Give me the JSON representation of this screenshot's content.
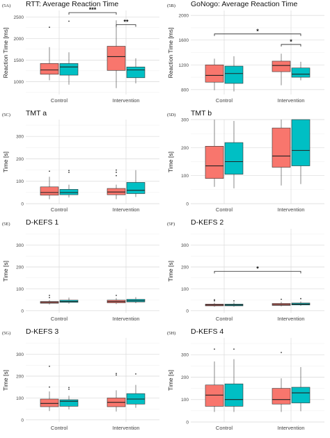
{
  "colors": {
    "control_box": "#f8766d",
    "intervention_box": "#00bfc4",
    "grid": "#d9d9d9",
    "grid_minor": "#eeeeee",
    "whisker": "#555555",
    "outlier": "#333333"
  },
  "chart_data": [
    {
      "id": "5A",
      "type": "boxplot",
      "panel_label": "(5A)",
      "title": "RTT: Average Reaction Time",
      "xlabel": "",
      "ylabel": "Reaction Time [ms]",
      "ylim": [
        700,
        2650
      ],
      "yticks": [
        1000,
        1500,
        2000,
        2500
      ],
      "categories": [
        "Control",
        "Intervention"
      ],
      "boxes": [
        {
          "group": "Control",
          "series": 0,
          "min": 1030,
          "q1": 1170,
          "median": 1270,
          "q3": 1420,
          "max": 1800,
          "outliers": [
            2260
          ]
        },
        {
          "group": "Control",
          "series": 1,
          "min": 930,
          "q1": 1150,
          "median": 1340,
          "q3": 1420,
          "max": 1680,
          "outliers": [
            2400
          ]
        },
        {
          "group": "Intervention",
          "series": 0,
          "min": 850,
          "q1": 1260,
          "median": 1580,
          "q3": 1820,
          "max": 2420,
          "outliers": []
        },
        {
          "group": "Intervention",
          "series": 1,
          "min": 960,
          "q1": 1090,
          "median": 1270,
          "q3": 1340,
          "max": 1540,
          "outliers": []
        }
      ],
      "significance": [
        {
          "label": "***",
          "from": [
            0,
            1
          ],
          "to": [
            1,
            0
          ],
          "y": 2600
        },
        {
          "label": "**",
          "from": [
            1,
            0
          ],
          "to": [
            1,
            1
          ],
          "y": 2320
        }
      ]
    },
    {
      "id": "5B",
      "type": "boxplot",
      "panel_label": "(5B)",
      "title": "GoNogo: Average Reaction Time",
      "xlabel": "",
      "ylabel": "Reaction Time [ms]",
      "ylim": [
        720,
        2080
      ],
      "yticks": [
        800,
        1200,
        1600,
        2000
      ],
      "categories": [
        "Control",
        "Intervention"
      ],
      "boxes": [
        {
          "group": "Control",
          "series": 0,
          "min": 790,
          "q1": 920,
          "median": 1030,
          "q3": 1200,
          "max": 1300,
          "outliers": []
        },
        {
          "group": "Control",
          "series": 1,
          "min": 770,
          "q1": 900,
          "median": 1060,
          "q3": 1180,
          "max": 1340,
          "outliers": []
        },
        {
          "group": "Intervention",
          "series": 0,
          "min": 870,
          "q1": 1090,
          "median": 1190,
          "q3": 1260,
          "max": 1380,
          "outliers": []
        },
        {
          "group": "Intervention",
          "series": 1,
          "min": 950,
          "q1": 1000,
          "median": 1050,
          "q3": 1150,
          "max": 1250,
          "outliers": []
        }
      ],
      "significance": [
        {
          "label": "*",
          "from": [
            0,
            0
          ],
          "to": [
            1,
            1
          ],
          "y": 1700
        },
        {
          "label": "*",
          "from": [
            1,
            0
          ],
          "to": [
            1,
            1
          ],
          "y": 1530
        }
      ]
    },
    {
      "id": "5C",
      "type": "boxplot",
      "panel_label": "(5C)",
      "title": "TMT a",
      "xlabel": "",
      "ylabel": "Time [s]",
      "ylim": [
        0,
        375
      ],
      "yticks": [
        0,
        100,
        200,
        300
      ],
      "categories": [
        "Control",
        "Intervention"
      ],
      "boxes": [
        {
          "group": "Control",
          "series": 0,
          "min": 20,
          "q1": 38,
          "median": 50,
          "q3": 75,
          "max": 120,
          "outliers": [
            145
          ]
        },
        {
          "group": "Control",
          "series": 1,
          "min": 28,
          "q1": 40,
          "median": 50,
          "q3": 64,
          "max": 85,
          "outliers": [
            140,
            148
          ]
        },
        {
          "group": "Intervention",
          "series": 0,
          "min": 20,
          "q1": 40,
          "median": 52,
          "q3": 68,
          "max": 85,
          "outliers": [
            125,
            140,
            150
          ]
        },
        {
          "group": "Intervention",
          "series": 1,
          "min": 30,
          "q1": 45,
          "median": 60,
          "q3": 95,
          "max": 150,
          "outliers": []
        }
      ],
      "significance": []
    },
    {
      "id": "5D",
      "type": "boxplot",
      "panel_label": "(5D)",
      "title": "TMT b",
      "xlabel": "",
      "ylabel": "Time [s]",
      "ylim": [
        0,
        300
      ],
      "yticks": [
        0,
        100,
        200,
        300
      ],
      "categories": [
        "Control",
        "Intervention"
      ],
      "boxes": [
        {
          "group": "Control",
          "series": 0,
          "min": 60,
          "q1": 90,
          "median": 135,
          "q3": 205,
          "max": 300,
          "outliers": []
        },
        {
          "group": "Control",
          "series": 1,
          "min": 55,
          "q1": 105,
          "median": 150,
          "q3": 218,
          "max": 295,
          "outliers": []
        },
        {
          "group": "Intervention",
          "series": 0,
          "min": 65,
          "q1": 130,
          "median": 170,
          "q3": 270,
          "max": 300,
          "outliers": []
        },
        {
          "group": "Intervention",
          "series": 1,
          "min": 70,
          "q1": 135,
          "median": 190,
          "q3": 300,
          "max": 300,
          "outliers": []
        }
      ],
      "significance": []
    },
    {
      "id": "5E",
      "type": "boxplot",
      "panel_label": "(5E)",
      "title": "D-KEFS 1",
      "xlabel": "",
      "ylabel": "Time [s]",
      "ylim": [
        -10,
        375
      ],
      "yticks": [
        0,
        100,
        200,
        300
      ],
      "categories": [
        "Control",
        "Intervention"
      ],
      "boxes": [
        {
          "group": "Control",
          "series": 0,
          "min": 28,
          "q1": 34,
          "median": 38,
          "q3": 42,
          "max": 48,
          "outliers": [
            60,
            70
          ]
        },
        {
          "group": "Control",
          "series": 1,
          "min": 32,
          "q1": 38,
          "median": 42,
          "q3": 48,
          "max": 60,
          "outliers": []
        },
        {
          "group": "Intervention",
          "series": 0,
          "min": 30,
          "q1": 36,
          "median": 42,
          "q3": 48,
          "max": 58,
          "outliers": [
            70
          ]
        },
        {
          "group": "Intervention",
          "series": 1,
          "min": 34,
          "q1": 40,
          "median": 45,
          "q3": 52,
          "max": 62,
          "outliers": []
        }
      ],
      "significance": []
    },
    {
      "id": "5F",
      "type": "boxplot",
      "panel_label": "(5F)",
      "title": "D-KEFS 2",
      "xlabel": "",
      "ylabel": "Time [s]",
      "ylim": [
        -10,
        375
      ],
      "yticks": [
        0,
        100,
        200,
        300
      ],
      "categories": [
        "Control",
        "Intervention"
      ],
      "boxes": [
        {
          "group": "Control",
          "series": 0,
          "min": 18,
          "q1": 22,
          "median": 26,
          "q3": 30,
          "max": 36,
          "outliers": [
            45,
            50
          ]
        },
        {
          "group": "Control",
          "series": 1,
          "min": 18,
          "q1": 22,
          "median": 26,
          "q3": 30,
          "max": 38,
          "outliers": [
            45
          ]
        },
        {
          "group": "Intervention",
          "series": 0,
          "min": 20,
          "q1": 24,
          "median": 28,
          "q3": 33,
          "max": 40,
          "outliers": [
            52
          ]
        },
        {
          "group": "Intervention",
          "series": 1,
          "min": 22,
          "q1": 26,
          "median": 30,
          "q3": 35,
          "max": 42,
          "outliers": [
            55
          ]
        }
      ],
      "significance": [
        {
          "label": "*",
          "from": [
            0,
            0
          ],
          "to": [
            1,
            1
          ],
          "y": 180
        }
      ]
    },
    {
      "id": "5G",
      "type": "boxplot",
      "panel_label": "(5G)",
      "title": "D-KEFS 3",
      "xlabel": "",
      "ylabel": "Time [s]",
      "ylim": [
        -10,
        375
      ],
      "yticks": [
        0,
        100,
        200,
        300
      ],
      "categories": [
        "Control",
        "Intervention"
      ],
      "boxes": [
        {
          "group": "Control",
          "series": 0,
          "min": 40,
          "q1": 60,
          "median": 75,
          "q3": 95,
          "max": 130,
          "outliers": [
            150,
            245
          ]
        },
        {
          "group": "Control",
          "series": 1,
          "min": 48,
          "q1": 62,
          "median": 85,
          "q3": 92,
          "max": 110,
          "outliers": [
            140,
            148
          ]
        },
        {
          "group": "Intervention",
          "series": 0,
          "min": 38,
          "q1": 60,
          "median": 80,
          "q3": 100,
          "max": 135,
          "outliers": [
            205,
            212
          ]
        },
        {
          "group": "Intervention",
          "series": 1,
          "min": 55,
          "q1": 72,
          "median": 95,
          "q3": 120,
          "max": 160,
          "outliers": [
            210
          ]
        }
      ],
      "significance": []
    },
    {
      "id": "5H",
      "type": "boxplot",
      "panel_label": "(5H)",
      "title": "D-KEFS 4",
      "xlabel": "",
      "ylabel": "Time [s]",
      "ylim": [
        0,
        375
      ],
      "yticks": [
        0,
        100,
        200,
        300
      ],
      "categories": [
        "Control",
        "Intervention"
      ],
      "boxes": [
        {
          "group": "Control",
          "series": 0,
          "min": 45,
          "q1": 70,
          "median": 120,
          "q3": 165,
          "max": 270,
          "outliers": [
            325
          ]
        },
        {
          "group": "Control",
          "series": 1,
          "min": 45,
          "q1": 70,
          "median": 100,
          "q3": 170,
          "max": 280,
          "outliers": [
            325
          ]
        },
        {
          "group": "Intervention",
          "series": 0,
          "min": 45,
          "q1": 80,
          "median": 100,
          "q3": 150,
          "max": 195,
          "outliers": [
            310
          ]
        },
        {
          "group": "Intervention",
          "series": 1,
          "min": 48,
          "q1": 85,
          "median": 130,
          "q3": 155,
          "max": 245,
          "outliers": []
        }
      ],
      "significance": []
    }
  ]
}
